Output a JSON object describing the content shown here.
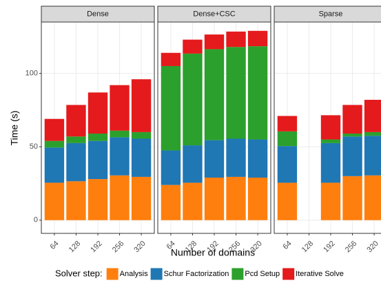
{
  "chart_data": {
    "type": "bar",
    "stacked": true,
    "xlabel": "Number of domains",
    "ylabel": "Time (s)",
    "legend_title": "Solver step:",
    "legend_position": "bottom",
    "grid": true,
    "ylim": [
      -9,
      135
    ],
    "yticks": [
      0,
      50,
      100
    ],
    "series": [
      {
        "name": "Analysis",
        "color": "#ff7f0e"
      },
      {
        "name": "Schur Factorization",
        "color": "#1f77b4"
      },
      {
        "name": "Pcd Setup",
        "color": "#2ca02c"
      },
      {
        "name": "Iterative Solve",
        "color": "#e41a1c"
      }
    ],
    "facets": [
      {
        "title": "Dense",
        "categories": [
          "64",
          "128",
          "192",
          "256",
          "320"
        ],
        "series": [
          {
            "values": [
              25.5,
              26.5,
              28,
              30.5,
              29.5
            ]
          },
          {
            "values": [
              24,
              26,
              26,
              26,
              26
            ]
          },
          {
            "values": [
              4.5,
              4.5,
              5,
              4.5,
              4.5
            ]
          },
          {
            "values": [
              15,
              21.5,
              28,
              31,
              36
            ]
          }
        ]
      },
      {
        "title": "Dense+CSC",
        "categories": [
          "64",
          "128",
          "192",
          "256",
          "320"
        ],
        "series": [
          {
            "values": [
              24,
              25.5,
              29,
              29.5,
              29
            ]
          },
          {
            "values": [
              23.5,
              25.5,
              25.5,
              26,
              26
            ]
          },
          {
            "values": [
              57.5,
              62.5,
              62,
              62.5,
              63.5
            ]
          },
          {
            "values": [
              9,
              9.5,
              10,
              10.5,
              10.5
            ]
          }
        ]
      },
      {
        "title": "Sparse",
        "categories": [
          "64",
          "128",
          "192",
          "256",
          "320"
        ],
        "series": [
          {
            "values": [
              25.5,
              null,
              25.5,
              30,
              30.5
            ]
          },
          {
            "values": [
              25,
              null,
              27,
              27,
              27
            ]
          },
          {
            "values": [
              10,
              null,
              2.5,
              2,
              2.5
            ]
          },
          {
            "values": [
              10.5,
              null,
              16.5,
              19.5,
              22
            ]
          }
        ]
      }
    ]
  }
}
